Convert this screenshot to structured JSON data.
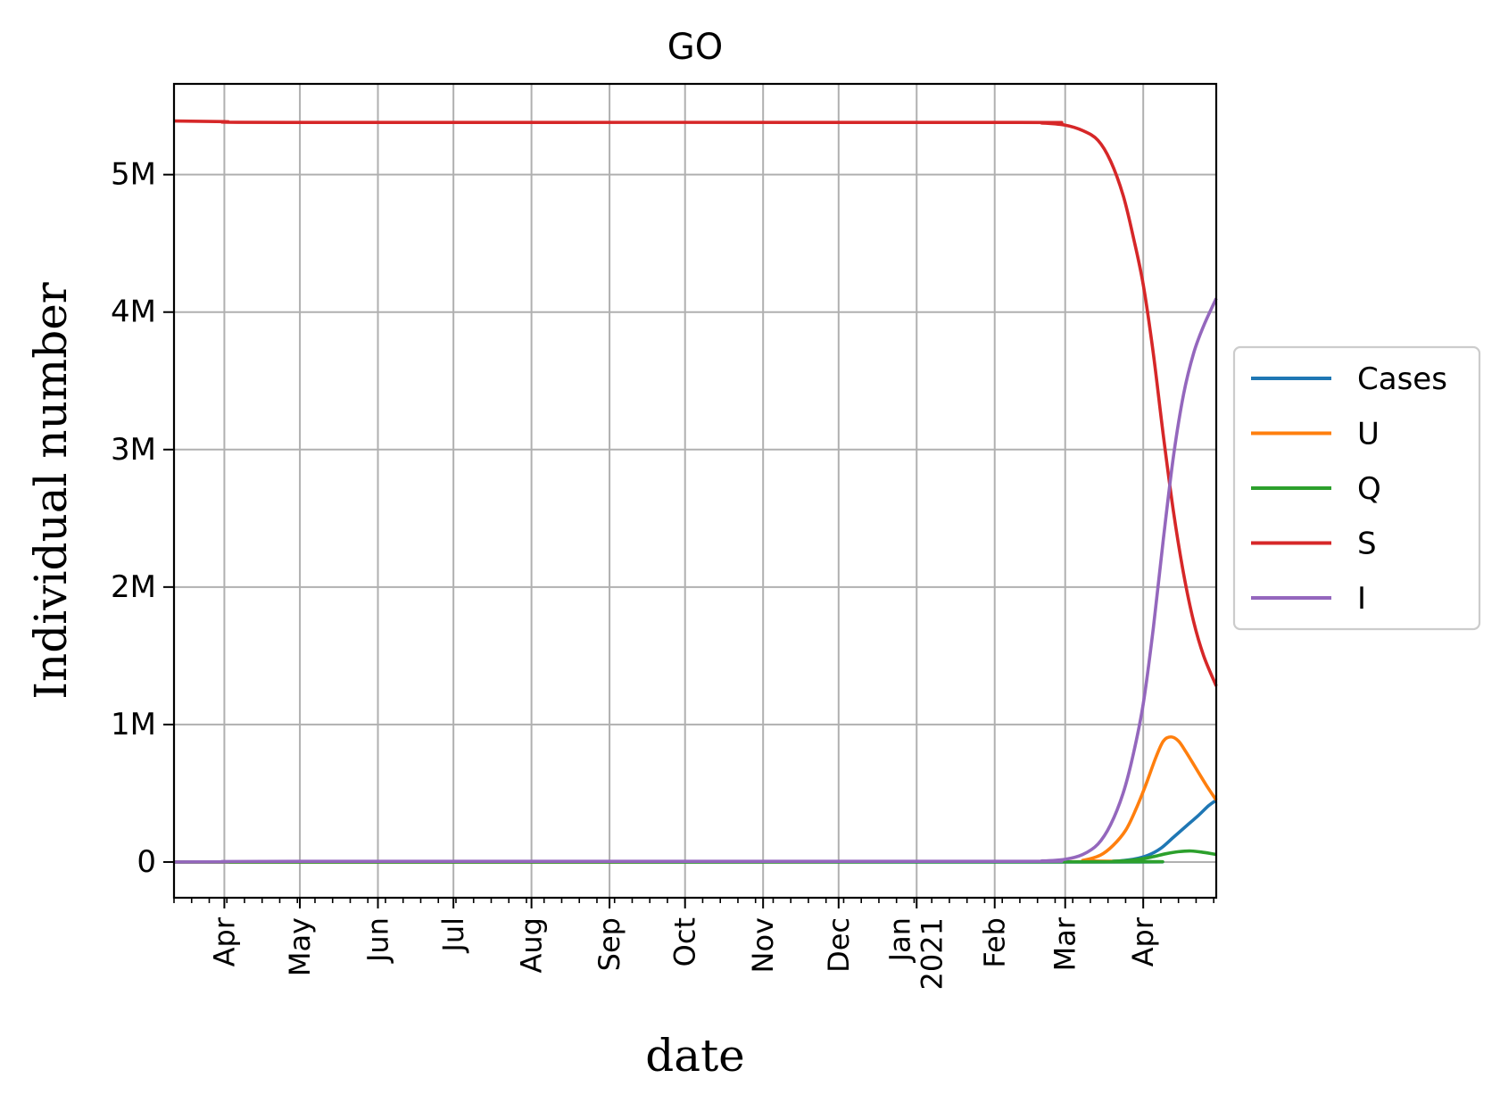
{
  "chart_data": {
    "type": "line",
    "title": "GO",
    "xlabel": "date",
    "ylabel": "Individual number",
    "x_range": [
      "2020-03-12",
      "2021-04-30"
    ],
    "ylim": [
      -260000,
      5660000
    ],
    "y_ticks": [
      0,
      1000000,
      2000000,
      3000000,
      4000000,
      5000000
    ],
    "y_tick_labels": [
      "0",
      "1M",
      "2M",
      "3M",
      "4M",
      "5M"
    ],
    "x_ticks": [
      "2020-04-01",
      "2020-05-01",
      "2020-06-01",
      "2020-07-01",
      "2020-08-01",
      "2020-09-01",
      "2020-10-01",
      "2020-11-01",
      "2020-12-01",
      "2021-01-01",
      "2021-02-01",
      "2021-03-01",
      "2021-04-01"
    ],
    "x_tick_labels": [
      "Apr",
      "May",
      "Jun",
      "Jul",
      "Aug",
      "Sep",
      "Oct",
      "Nov",
      "Dec",
      "Jan\n2021",
      "Feb",
      "Mar",
      "Apr"
    ],
    "grid": true,
    "legend_position": "outside-right",
    "series": [
      {
        "name": "Cases",
        "color": "#1f77b4",
        "points": [
          [
            "2020-03-12",
            0
          ],
          [
            "2021-03-10",
            0
          ],
          [
            "2021-03-20",
            5000
          ],
          [
            "2021-03-28",
            20000
          ],
          [
            "2021-04-03",
            50000
          ],
          [
            "2021-04-08",
            100000
          ],
          [
            "2021-04-13",
            180000
          ],
          [
            "2021-04-18",
            260000
          ],
          [
            "2021-04-23",
            340000
          ],
          [
            "2021-04-27",
            410000
          ],
          [
            "2021-04-30",
            450000
          ]
        ]
      },
      {
        "name": "U",
        "color": "#ff7f0e",
        "points": [
          [
            "2020-03-12",
            0
          ],
          [
            "2021-02-28",
            2000
          ],
          [
            "2021-03-08",
            12000
          ],
          [
            "2021-03-15",
            50000
          ],
          [
            "2021-03-20",
            120000
          ],
          [
            "2021-03-25",
            230000
          ],
          [
            "2021-03-29",
            380000
          ],
          [
            "2021-04-02",
            560000
          ],
          [
            "2021-04-06",
            760000
          ],
          [
            "2021-04-09",
            880000
          ],
          [
            "2021-04-12",
            910000
          ],
          [
            "2021-04-15",
            880000
          ],
          [
            "2021-04-18",
            800000
          ],
          [
            "2021-04-22",
            680000
          ],
          [
            "2021-04-26",
            560000
          ],
          [
            "2021-04-30",
            450000
          ]
        ]
      },
      {
        "name": "Q",
        "color": "#2ca02c",
        "points": [
          [
            "2020-03-12",
            0
          ],
          [
            "2021-03-10",
            1000
          ],
          [
            "2021-03-20",
            5000
          ],
          [
            "2021-03-28",
            15000
          ],
          [
            "2021-04-04",
            35000
          ],
          [
            "2021-04-10",
            60000
          ],
          [
            "2021-04-15",
            75000
          ],
          [
            "2021-04-20",
            80000
          ],
          [
            "2021-04-25",
            70000
          ],
          [
            "2021-04-30",
            55000
          ]
        ]
      },
      {
        "name": "S",
        "color": "#d62728",
        "points": [
          [
            "2020-03-12",
            5390000
          ],
          [
            "2020-04-01",
            5385000
          ],
          [
            "2020-05-01",
            5380000
          ],
          [
            "2021-02-01",
            5380000
          ],
          [
            "2021-02-20",
            5375000
          ],
          [
            "2021-03-01",
            5360000
          ],
          [
            "2021-03-08",
            5320000
          ],
          [
            "2021-03-14",
            5250000
          ],
          [
            "2021-03-19",
            5100000
          ],
          [
            "2021-03-24",
            4850000
          ],
          [
            "2021-03-28",
            4550000
          ],
          [
            "2021-04-01",
            4200000
          ],
          [
            "2021-04-05",
            3700000
          ],
          [
            "2021-04-09",
            3100000
          ],
          [
            "2021-04-13",
            2550000
          ],
          [
            "2021-04-17",
            2100000
          ],
          [
            "2021-04-21",
            1750000
          ],
          [
            "2021-04-25",
            1500000
          ],
          [
            "2021-04-30",
            1280000
          ]
        ]
      },
      {
        "name": "I",
        "color": "#9467bd",
        "points": [
          [
            "2020-03-12",
            0
          ],
          [
            "2020-04-01",
            2000
          ],
          [
            "2020-05-01",
            5000
          ],
          [
            "2021-02-01",
            5000
          ],
          [
            "2021-02-20",
            8000
          ],
          [
            "2021-03-01",
            20000
          ],
          [
            "2021-03-08",
            55000
          ],
          [
            "2021-03-14",
            130000
          ],
          [
            "2021-03-19",
            270000
          ],
          [
            "2021-03-24",
            500000
          ],
          [
            "2021-03-28",
            780000
          ],
          [
            "2021-04-01",
            1150000
          ],
          [
            "2021-04-05",
            1700000
          ],
          [
            "2021-04-09",
            2350000
          ],
          [
            "2021-04-13",
            2950000
          ],
          [
            "2021-04-17",
            3400000
          ],
          [
            "2021-04-21",
            3700000
          ],
          [
            "2021-04-25",
            3900000
          ],
          [
            "2021-04-30",
            4100000
          ]
        ]
      }
    ]
  }
}
